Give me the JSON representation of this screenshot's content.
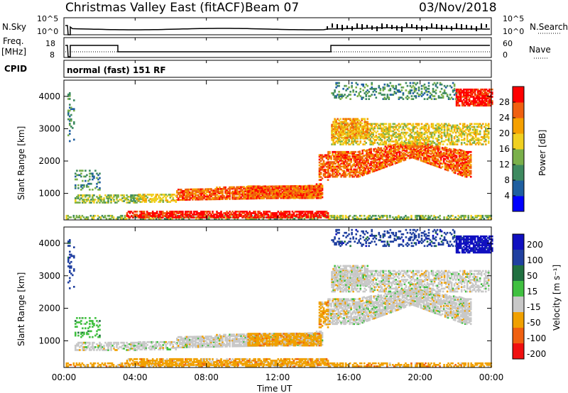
{
  "header": {
    "station": "Christmas Valley East (fitACF)",
    "beam": "Beam 07",
    "date": "03/Nov/2018"
  },
  "summary": {
    "nsky_label": "N.Sky",
    "nsearch_label": "N.Search",
    "noise_ticks": [
      "10^5",
      "10^0"
    ],
    "freq_label": "Freq.",
    "freq_unit": "[MHz]",
    "freq_ticks": [
      "18",
      "8"
    ],
    "nave_label": "Nave",
    "nave_ticks": [
      "60",
      "0"
    ],
    "cpid_label": "CPID",
    "cpid_value": "normal (fast) 151 RF"
  },
  "chart_data": [
    {
      "type": "heatmap",
      "panel": "power",
      "ylabel": "Slant Range [km]",
      "y_ticks": [
        "1000",
        "2000",
        "3000",
        "4000"
      ],
      "ylim": [
        180,
        4500
      ],
      "colorbar_label": "Power [dB]",
      "colorbar_ticks": [
        "4",
        "8",
        "12",
        "16",
        "20",
        "24",
        "28"
      ],
      "colors": [
        "#0000ff",
        "#1f5fa0",
        "#3e8a60",
        "#7ab04a",
        "#f0d020",
        "#f5a000",
        "#f06010",
        "#ff0000"
      ]
    },
    {
      "type": "heatmap",
      "panel": "velocity",
      "ylabel": "Slant Range [km]",
      "y_ticks": [
        "1000",
        "2000",
        "3000",
        "4000"
      ],
      "ylim": [
        180,
        4500
      ],
      "colorbar_label": "Velocity [m s⁻¹]",
      "colorbar_ticks": [
        "200",
        "100",
        "50",
        "15",
        "-15",
        "-50",
        "-100",
        "-200"
      ],
      "colors": [
        "#1010c0",
        "#2040a0",
        "#207040",
        "#40c040",
        "#c8c8c8",
        "#f0a000",
        "#f06010",
        "#f01010"
      ],
      "x_ticks": [
        "00:00",
        "04:00",
        "08:00",
        "12:00",
        "16:00",
        "20:00",
        "00:00"
      ],
      "xlabel": "Time UT"
    }
  ]
}
